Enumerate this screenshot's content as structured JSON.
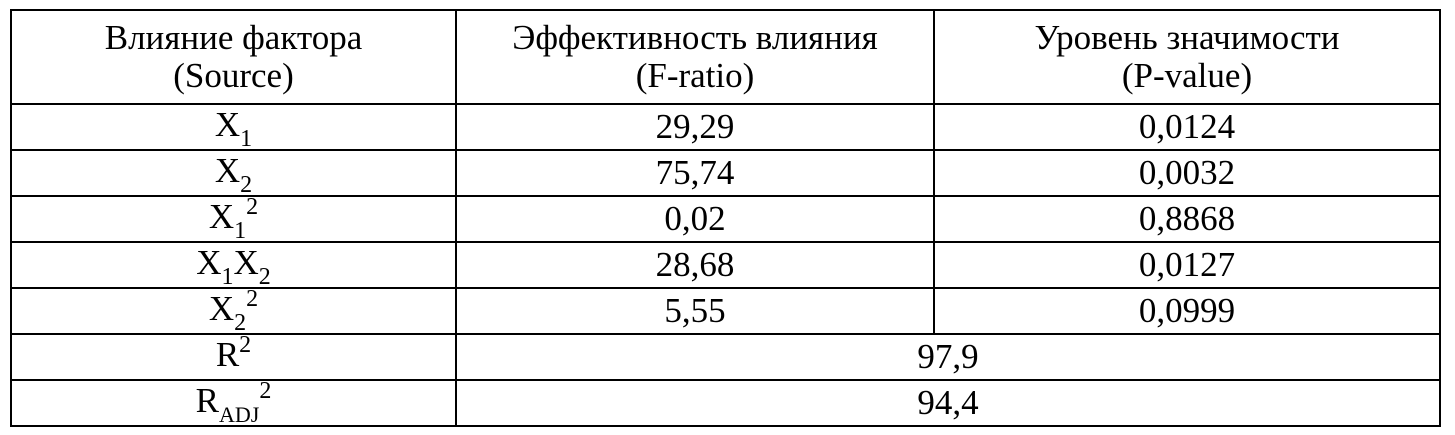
{
  "headers": {
    "source_line1": "Влияние фактора",
    "source_line2": "(Source)",
    "fratio_line1": "Эффективность влияния",
    "fratio_line2": "(F-ratio)",
    "pvalue_line1": "Уровень значимости",
    "pvalue_line2": "(P-value)"
  },
  "rows": [
    {
      "base": "X",
      "sub": "1",
      "sup": "",
      "base2": "",
      "sub2": "",
      "f": "29,29",
      "p": "0,0124"
    },
    {
      "base": "X",
      "sub": "2",
      "sup": "",
      "base2": "",
      "sub2": "",
      "f": "75,74",
      "p": "0,0032"
    },
    {
      "base": "X",
      "sub": "1",
      "sup": "2",
      "base2": "",
      "sub2": "",
      "f": "0,02",
      "p": "0,8868"
    },
    {
      "base": "X",
      "sub": "1",
      "sup": "",
      "base2": "X",
      "sub2": "2",
      "f": "28,68",
      "p": "0,0127"
    },
    {
      "base": "X",
      "sub": "2",
      "sup": "2",
      "base2": "",
      "sub2": "",
      "f": "5,55",
      "p": "0,0999"
    }
  ],
  "summary": [
    {
      "base": "R",
      "sub": "",
      "sup": "2",
      "value": "97,9"
    },
    {
      "base": "R",
      "sub": "ADJ",
      "sup": "2",
      "value": "94,4"
    }
  ]
}
